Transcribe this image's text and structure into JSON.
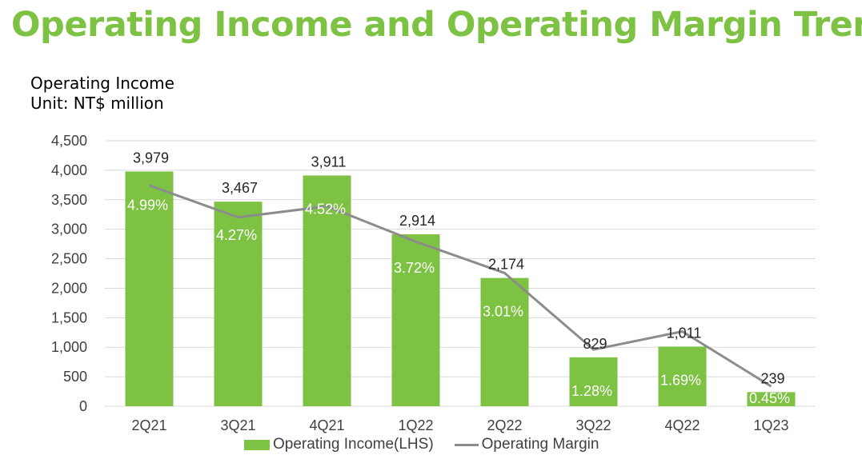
{
  "title": "Operating Income and Operating Margin Trend",
  "subtitle": {
    "line1": "Operating Income",
    "line2": "Unit: NT$ million"
  },
  "colors": {
    "title": "#7dc242",
    "bar": "#7dc242",
    "line": "#8c8c8c",
    "grid": "#d9d9d9"
  },
  "chart_data": {
    "type": "bar",
    "categories": [
      "2Q21",
      "3Q21",
      "4Q21",
      "1Q22",
      "2Q22",
      "3Q22",
      "4Q22",
      "1Q23"
    ],
    "series": [
      {
        "name": "Operating Income(LHS)",
        "type": "bar",
        "axis": "left",
        "values": [
          3979,
          3467,
          3911,
          2914,
          2174,
          829,
          1011,
          239
        ],
        "labels": [
          "3,979",
          "3,467",
          "3,911",
          "2,914",
          "2,174",
          "829",
          "1,011",
          "239"
        ]
      },
      {
        "name": "Operating Margin",
        "type": "line",
        "axis": "right",
        "values": [
          4.99,
          4.27,
          4.52,
          3.72,
          3.01,
          1.28,
          1.69,
          0.45
        ],
        "labels": [
          "4.99%",
          "4.27%",
          "4.52%",
          "3.72%",
          "3.01%",
          "1.28%",
          "1.69%",
          "0.45%"
        ]
      }
    ],
    "yticks": [
      "0",
      "500",
      "1,000",
      "1,500",
      "2,000",
      "2,500",
      "3,000",
      "3,500",
      "4,000",
      "4,500"
    ],
    "ylim": [
      0,
      4500
    ],
    "grid": true,
    "legend_position": "bottom"
  }
}
